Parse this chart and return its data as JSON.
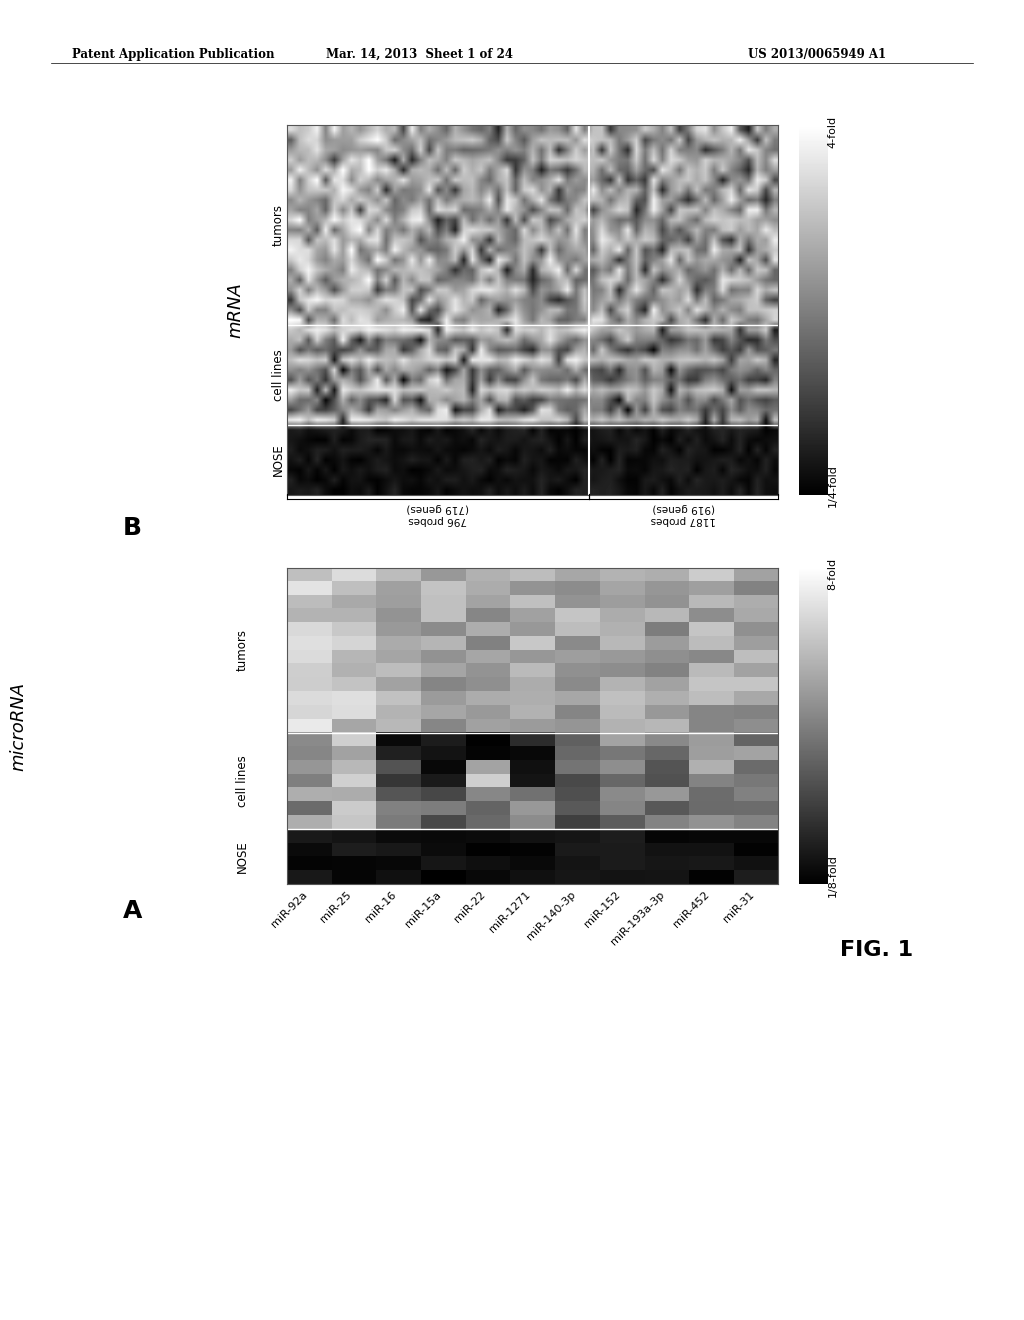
{
  "page_header_left": "Patent Application Publication",
  "page_header_mid": "Mar. 14, 2013  Sheet 1 of 24",
  "page_header_right": "US 2013/0065949 A1",
  "fig_label": "FIG. 1",
  "panel_A_label": "A",
  "panel_B_label": "B",
  "panel_A_ylabel": "microRNA",
  "panel_B_ylabel": "mRNA",
  "mirna_cols": [
    "miR-92a",
    "miR-25",
    "miR-16",
    "miR-15a",
    "miR-22",
    "miR-1271",
    "miR-140-3p",
    "miR-152",
    "miR-193a-3p",
    "miR-452",
    "miR-31"
  ],
  "mirna_row_labels": [
    "tumors",
    "cell lines",
    "NOSE"
  ],
  "mrna_row_labels": [
    "tumors",
    "cell lines",
    "NOSE"
  ],
  "mrna_col_label_left": "1187 probes\n(919 genes)",
  "mrna_col_label_right": "796 probes\n(719 genes)",
  "panel_A_legend_high": "8-fold",
  "panel_A_legend_low": "1/8-fold",
  "panel_B_legend_high": "4-fold",
  "panel_B_legend_low": "1/4-fold",
  "background_color": "#ffffff",
  "n_tumor_A": 12,
  "n_cell_A": 7,
  "n_nose_A": 4,
  "n_cols_A": 11,
  "n_tumor_B": 20,
  "n_cell_B": 10,
  "n_nose_B": 7,
  "n_cols_B1": 35,
  "n_cols_B2": 22
}
